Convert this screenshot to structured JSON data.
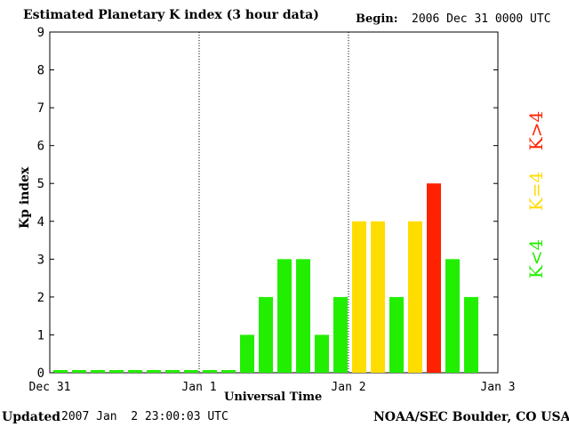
{
  "header": {
    "title": "Estimated Planetary K index (3 hour data)",
    "begin_label": "Begin:",
    "begin_value": "2006 Dec 31 0000 UTC"
  },
  "footer": {
    "updated_label": "Updated",
    "updated_value": "2007 Jan  2 23:00:03 UTC",
    "source": "NOAA/SEC Boulder, CO USA"
  },
  "legend": {
    "high": "K>4",
    "equal": "K=4",
    "low": "K<4"
  },
  "colors": {
    "low": "#22ee00",
    "equal": "#ffdd00",
    "high": "#ff2200"
  },
  "chart_data": {
    "type": "bar",
    "title": "Estimated Planetary K index (3 hour data)",
    "xlabel": "Universal Time",
    "ylabel": "Kp index",
    "ylim": [
      0,
      9
    ],
    "yticks": [
      "0",
      "1",
      "2",
      "3",
      "4",
      "5",
      "6",
      "7",
      "8",
      "9"
    ],
    "xticks": [
      "Dec 31",
      "Jan 1",
      "Jan 2",
      "Jan 3"
    ],
    "values": [
      0,
      0,
      0,
      0,
      0,
      0,
      0,
      0,
      0,
      0,
      1,
      2,
      3,
      3,
      1,
      2,
      4,
      4,
      2,
      4,
      5,
      3,
      2
    ],
    "legend_position": "right",
    "grid": false
  }
}
